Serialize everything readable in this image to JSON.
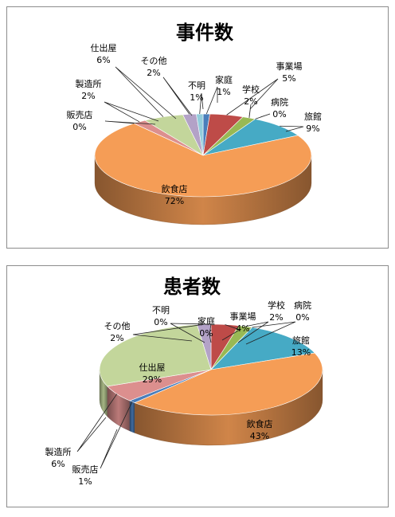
{
  "chart_data": [
    {
      "type": "pie",
      "title": "事件数",
      "unit": "%",
      "slices": [
        {
          "name": "家庭",
          "value": 1,
          "color": "#4a7ebb"
        },
        {
          "name": "事業場",
          "value": 5,
          "color": "#be4b48"
        },
        {
          "name": "学校",
          "value": 2,
          "color": "#98b954"
        },
        {
          "name": "病院",
          "value": 0,
          "color": "#7d60a0"
        },
        {
          "name": "旅館",
          "value": 9,
          "color": "#46aac5"
        },
        {
          "name": "飲食店",
          "value": 72,
          "color": "#f59d56"
        },
        {
          "name": "販売店",
          "value": 0,
          "color": "#4a7ebb"
        },
        {
          "name": "製造所",
          "value": 2,
          "color": "#dc8f8e"
        },
        {
          "name": "仕出屋",
          "value": 6,
          "color": "#c3d69b"
        },
        {
          "name": "その他",
          "value": 2,
          "color": "#b3a2c7"
        },
        {
          "name": "不明",
          "value": 1,
          "color": "#92cddc"
        }
      ]
    },
    {
      "type": "pie",
      "title": "患者数",
      "unit": "%",
      "slices": [
        {
          "name": "家庭",
          "value": 0,
          "color": "#4a7ebb"
        },
        {
          "name": "事業場",
          "value": 4,
          "color": "#be4b48"
        },
        {
          "name": "学校",
          "value": 2,
          "color": "#98b954"
        },
        {
          "name": "病院",
          "value": 0,
          "color": "#7d60a0"
        },
        {
          "name": "旅館",
          "value": 13,
          "color": "#46aac5"
        },
        {
          "name": "飲食店",
          "value": 43,
          "color": "#f59d56"
        },
        {
          "name": "販売店",
          "value": 1,
          "color": "#4a7ebb"
        },
        {
          "name": "製造所",
          "value": 6,
          "color": "#dc8f8e"
        },
        {
          "name": "仕出屋",
          "value": 29,
          "color": "#c3d69b"
        },
        {
          "name": "その他",
          "value": 2,
          "color": "#b3a2c7"
        },
        {
          "name": "不明",
          "value": 0,
          "color": "#92cddc"
        }
      ]
    }
  ]
}
